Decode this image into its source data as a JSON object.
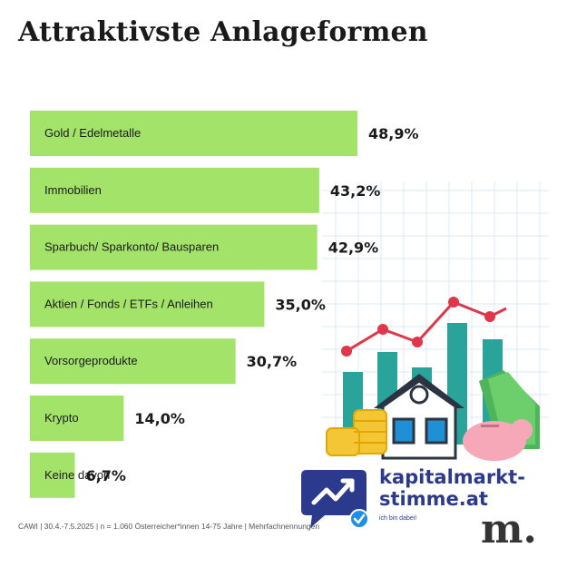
{
  "title": "Attraktivste Anlageformen",
  "chart_data": {
    "type": "bar",
    "orientation": "horizontal",
    "categories": [
      "Gold / Edelmetalle",
      "Immobilien",
      "Sparbuch/ Sparkonto/ Bausparen",
      "Aktien / Fonds / ETFs / Anleihen",
      "Vorsorgeprodukte",
      "Krypto",
      "Keine davon"
    ],
    "values": [
      48.9,
      43.2,
      42.9,
      35.0,
      30.7,
      14.0,
      6.7
    ],
    "value_labels": [
      "48,9%",
      "43,2%",
      "42,9%",
      "35,0%",
      "30,7%",
      "14,0%",
      "6,7%"
    ],
    "unit": "%",
    "bar_color": "#a4e36a",
    "xlim": [
      0,
      48.9
    ],
    "grid": false,
    "legend": "none"
  },
  "footnote": "CAWI | 30.4.-7.5.2025 | n = 1.060 Österreicher*innen 14-75 Jahre | Mehrfachnennungen",
  "logo": {
    "name_line1": "kapitalmarkt-",
    "name_line2": "stimme.at",
    "tagline": "ich bin dabei!",
    "color": "#2b3a8c"
  },
  "brand_mark": "m."
}
